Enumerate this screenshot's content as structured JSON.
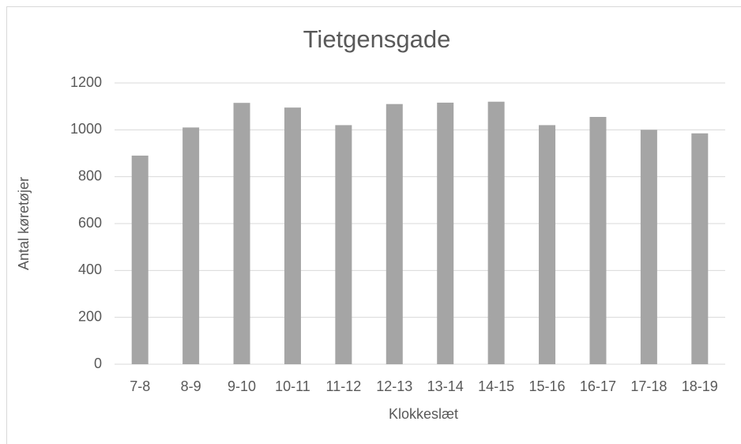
{
  "chart_data": {
    "type": "bar",
    "title": "Tietgensgade",
    "x_label": "Klokkeslæt",
    "y_label": "Antal køretøjer",
    "categories": [
      "7-8",
      "8-9",
      "9-10",
      "10-11",
      "11-12",
      "12-13",
      "13-14",
      "14-15",
      "15-16",
      "16-17",
      "17-18",
      "18-19"
    ],
    "values": [
      890,
      1010,
      1115,
      1095,
      1020,
      1110,
      1116,
      1120,
      1020,
      1055,
      1000,
      985
    ],
    "color": "#a5a5a5",
    "ylim": [
      0,
      1200
    ],
    "yticks": [
      0,
      200,
      400,
      600,
      800,
      1000,
      1200
    ],
    "grid": true
  }
}
